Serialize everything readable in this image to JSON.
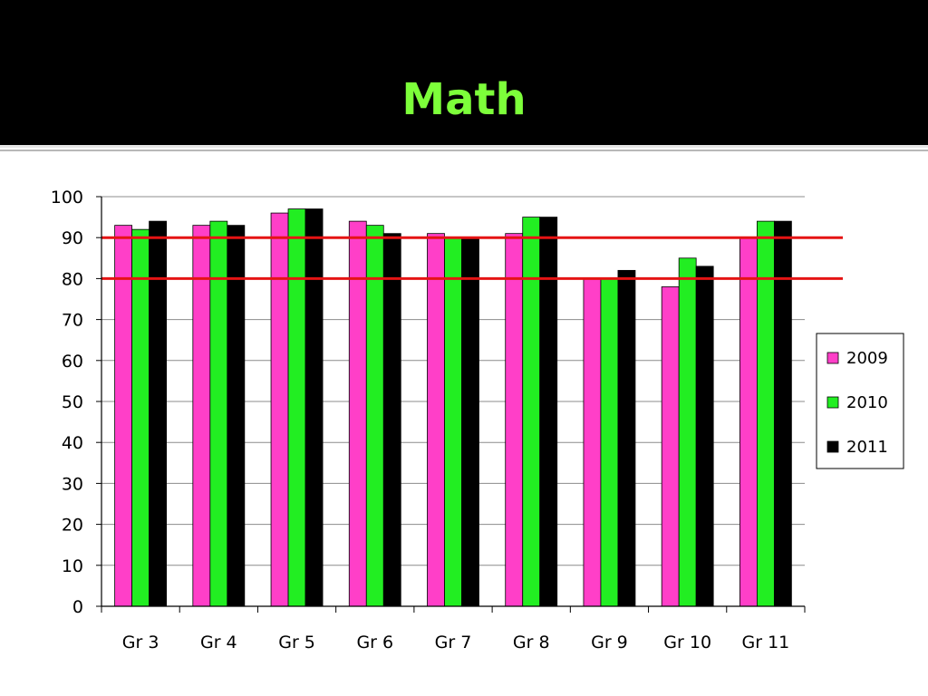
{
  "slide": {
    "title": "Math"
  },
  "colors": {
    "header_background": "#000000",
    "title_text": "#7dff3a",
    "series_2009": "#ff3fc8",
    "series_2010": "#22ee22",
    "series_2011": "#000000",
    "threshold_lines": "#e51414"
  },
  "chart_data": {
    "type": "bar",
    "title": "Math",
    "xlabel": "",
    "ylabel": "",
    "ylim": [
      0,
      100
    ],
    "yticks": [
      0,
      10,
      20,
      30,
      40,
      50,
      60,
      70,
      80,
      90,
      100
    ],
    "grid": true,
    "legend_position": "right",
    "categories": [
      "Gr 3",
      "Gr 4",
      "Gr 5",
      "Gr 6",
      "Gr 7",
      "Gr 8",
      "Gr 9",
      "Gr 10",
      "Gr 11"
    ],
    "series": [
      {
        "name": "2009",
        "color": "#ff3fc8",
        "values": [
          93,
          93,
          96,
          94,
          91,
          91,
          80,
          78,
          90
        ]
      },
      {
        "name": "2010",
        "color": "#22ee22",
        "values": [
          92,
          94,
          97,
          93,
          90,
          95,
          80,
          85,
          94
        ]
      },
      {
        "name": "2011",
        "color": "#000000",
        "values": [
          94,
          93,
          97,
          91,
          90,
          95,
          82,
          83,
          94
        ]
      }
    ],
    "reference_lines": [
      {
        "y": 90,
        "color": "#e51414"
      },
      {
        "y": 80,
        "color": "#e51414"
      }
    ]
  }
}
